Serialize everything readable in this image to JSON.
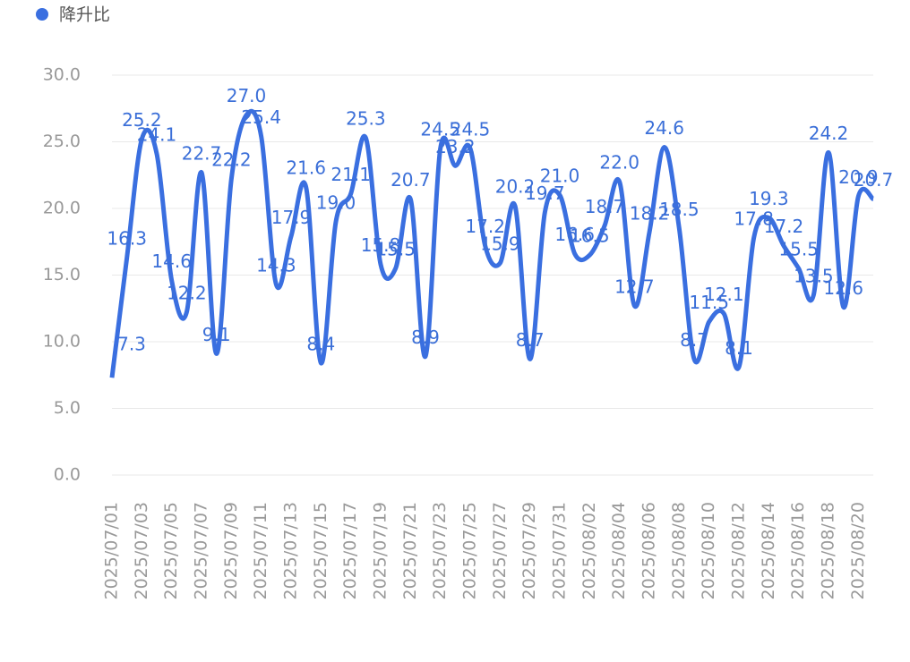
{
  "chart_data": {
    "type": "line",
    "categories": [
      "2025/07/01",
      null,
      "2025/07/03",
      null,
      "2025/07/05",
      null,
      "2025/07/07",
      null,
      "2025/07/09",
      null,
      "2025/07/11",
      null,
      "2025/07/13",
      null,
      "2025/07/15",
      null,
      "2025/07/17",
      null,
      "2025/07/19",
      null,
      "2025/07/21",
      null,
      "2025/07/23",
      null,
      "2025/07/25",
      null,
      "2025/07/27",
      null,
      "2025/07/29",
      null,
      "2025/07/31",
      null,
      "2025/08/02",
      null,
      "2025/08/04",
      null,
      "2025/08/06",
      null,
      "2025/08/08",
      null,
      "2025/08/10",
      null,
      "2025/08/12",
      null,
      "2025/08/14",
      null,
      "2025/08/16",
      null,
      "2025/08/18",
      null,
      "2025/08/20",
      null
    ],
    "series": [
      {
        "name": "降升比",
        "color": "#3a6fe0",
        "values": [
          7.3,
          16.3,
          25.2,
          24.1,
          14.6,
          12.2,
          22.7,
          9.1,
          22.2,
          27.0,
          25.4,
          14.3,
          17.9,
          21.6,
          8.4,
          19.0,
          21.1,
          25.3,
          15.8,
          15.5,
          20.7,
          8.9,
          24.5,
          23.2,
          24.5,
          17.2,
          15.9,
          20.2,
          8.7,
          19.7,
          21.0,
          16.6,
          16.5,
          18.7,
          22.0,
          12.7,
          18.2,
          24.6,
          18.5,
          8.7,
          11.5,
          12.1,
          8.1,
          17.8,
          19.3,
          17.2,
          15.5,
          13.5,
          24.2,
          12.6,
          20.9,
          20.7
        ],
        "value_labels": [
          "7.3",
          "16.3",
          "25.2",
          "24.1",
          "14.6",
          "12.2",
          "22.7",
          "9.1",
          "22.2",
          "27.0",
          "25.4",
          "14.3",
          "17.9",
          "21.6",
          "8.4",
          "19.0",
          "21.1",
          "25.3",
          "15.8",
          "15.5",
          "20.7",
          "8.9",
          "24.5",
          "23.2",
          "24.5",
          "17.2",
          "15.9",
          "20.2",
          "8.7",
          "19.7",
          "21.0",
          "16.6",
          "16.5",
          "18.7",
          "22.0",
          "12.7",
          "18.2",
          "24.6",
          "18.5",
          "8.7",
          "11.5",
          "12.1",
          "8.1",
          "17.8",
          "19.3",
          "17.2",
          "15.5",
          "13.5",
          "24.2",
          "12.6",
          "20.9",
          "20.7"
        ]
      }
    ],
    "ylim": [
      0,
      30
    ],
    "yticks": [
      {
        "value": 0,
        "label": "0.0"
      },
      {
        "value": 5,
        "label": "5.0"
      },
      {
        "value": 10,
        "label": "10.0"
      },
      {
        "value": 15,
        "label": "15.0"
      },
      {
        "value": 20,
        "label": "20.0"
      },
      {
        "value": 25,
        "label": "25.0"
      },
      {
        "value": 30,
        "label": "30.0"
      }
    ],
    "grid": true,
    "legend": "top-left",
    "smooth": true
  }
}
